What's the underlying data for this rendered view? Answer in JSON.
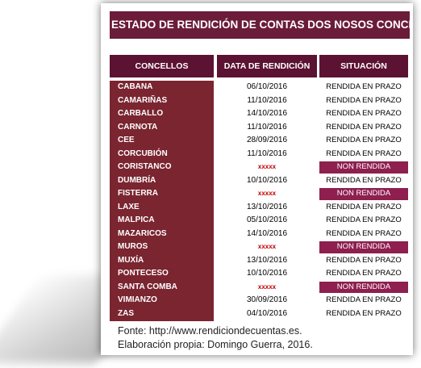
{
  "title": "ESTADO DE RENDICIÓN DE CONTAS DOS NOSOS CONCELLOS",
  "headers": {
    "concellos": "CONCELLOS",
    "data": "DATA DE RENDICIÓN",
    "situacion": "SITUACIÓN"
  },
  "rows": [
    {
      "name": "CABANA",
      "date": "06/10/2016",
      "status": "RENDIDA EN PRAZO"
    },
    {
      "name": "CAMARIÑAS",
      "date": "11/10/2016",
      "status": "RENDIDA EN PRAZO"
    },
    {
      "name": "CARBALLO",
      "date": "14/10/2016",
      "status": "RENDIDA EN PRAZO"
    },
    {
      "name": "CARNOTA",
      "date": "11/10/2016",
      "status": "RENDIDA EN PRAZO"
    },
    {
      "name": "CEE",
      "date": "28/09/2016",
      "status": "RENDIDA EN PRAZO"
    },
    {
      "name": "CORCUBIÓN",
      "date": "11/10/2016",
      "status": "RENDIDA EN PRAZO"
    },
    {
      "name": "CORISTANCO",
      "date": "xxxxx",
      "status": "NON RENDIDA"
    },
    {
      "name": "DUMBRÍA",
      "date": "10/10/2016",
      "status": "RENDIDA EN PRAZO"
    },
    {
      "name": "FISTERRA",
      "date": "xxxxx",
      "status": "NON RENDIDA"
    },
    {
      "name": "LAXE",
      "date": "13/10/2016",
      "status": "RENDIDA EN PRAZO"
    },
    {
      "name": "MALPICA",
      "date": "05/10/2016",
      "status": "RENDIDA EN PRAZO"
    },
    {
      "name": "MAZARICOS",
      "date": "14/10/2016",
      "status": "RENDIDA EN PRAZO"
    },
    {
      "name": "MUROS",
      "date": "xxxxx",
      "status": "NON RENDIDA"
    },
    {
      "name": "MUXÍA",
      "date": "13/10/2016",
      "status": "RENDIDA EN PRAZO"
    },
    {
      "name": "PONTECESO",
      "date": "10/10/2016",
      "status": "RENDIDA EN PRAZO"
    },
    {
      "name": "SANTA COMBA",
      "date": "xxxxx",
      "status": "NON RENDIDA"
    },
    {
      "name": "VIMIANZO",
      "date": "30/09/2016",
      "status": "RENDIDA EN PRAZO"
    },
    {
      "name": "ZAS",
      "date": "04/10/2016",
      "status": "RENDIDA EN PRAZO"
    }
  ],
  "footer": {
    "source": "Fonte: http://www.rendiciondecuentas.es.",
    "author": "Elaboración propia: Domingo Guerra, 2016."
  },
  "colors": {
    "title_bg": "#6b1c38",
    "header_bg": "#5c1232",
    "names_bg": "#7a2530",
    "non_rendida_bg": "#8e1f4f",
    "missing_text": "#c00000"
  }
}
